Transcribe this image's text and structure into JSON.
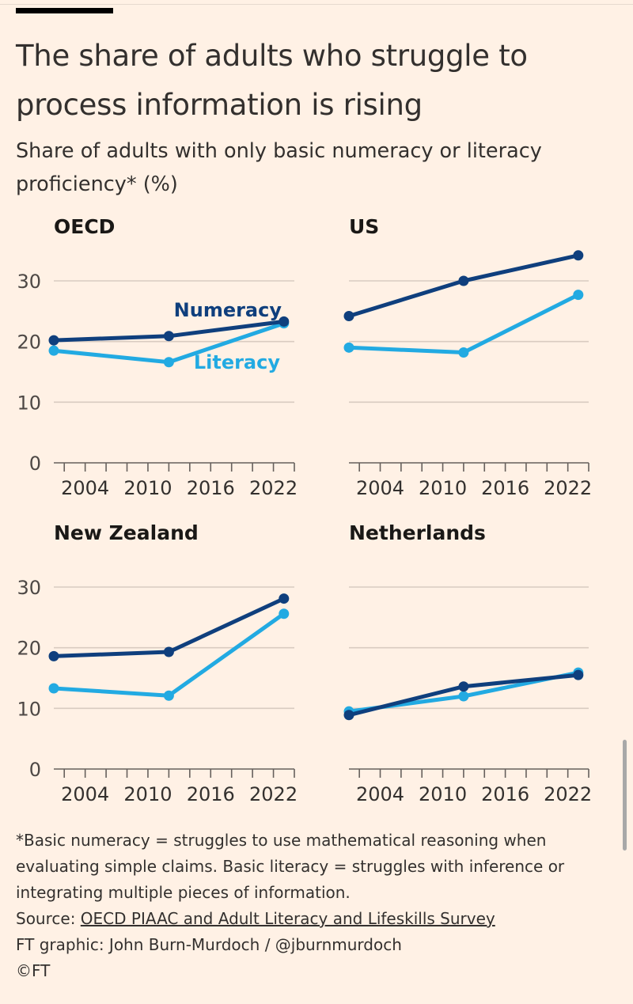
{
  "header": {
    "title": "The share of adults who struggle to process information is rising",
    "subtitle": "Share of adults with only basic numeracy or literacy proficiency* (%)"
  },
  "colors": {
    "numeracy": "#0F3F7D",
    "literacy": "#22AAE2",
    "background": "#FFF1E5",
    "grid": "#D9CCC1"
  },
  "chart_data": [
    {
      "type": "line",
      "title": "OECD",
      "x_ticks": [
        2004,
        2010,
        2016,
        2022
      ],
      "ylim": [
        0,
        30
      ],
      "y_ticks": [
        0,
        10,
        20,
        30
      ],
      "xlim": [
        2001,
        2024
      ],
      "series": [
        {
          "name": "Numeracy",
          "x": [
            2001,
            2012,
            2023
          ],
          "values": [
            20.2,
            20.9,
            23.3
          ]
        },
        {
          "name": "Literacy",
          "x": [
            2001,
            2012,
            2023
          ],
          "values": [
            18.5,
            16.6,
            23.0
          ]
        }
      ]
    },
    {
      "type": "line",
      "title": "US",
      "x_ticks": [
        2004,
        2010,
        2016,
        2022
      ],
      "ylim": [
        0,
        30
      ],
      "y_ticks": [
        0,
        10,
        20,
        30
      ],
      "xlim": [
        2001,
        2024
      ],
      "series": [
        {
          "name": "",
          "x": [
            2001,
            2012,
            2023
          ],
          "values": [
            24.2,
            30.0,
            34.2
          ]
        },
        {
          "name": "",
          "x": [
            2001,
            2012,
            2023
          ],
          "values": [
            19.0,
            18.2,
            27.7
          ]
        }
      ]
    },
    {
      "type": "line",
      "title": "New Zealand",
      "x_ticks": [
        2004,
        2010,
        2016,
        2022
      ],
      "ylim": [
        0,
        30
      ],
      "y_ticks": [
        0,
        10,
        20,
        30
      ],
      "xlim": [
        2001,
        2024
      ],
      "series": [
        {
          "name": "",
          "x": [
            2001,
            2012,
            2023
          ],
          "values": [
            18.6,
            19.3,
            28.1
          ]
        },
        {
          "name": "",
          "x": [
            2001,
            2012,
            2023
          ],
          "values": [
            13.3,
            12.1,
            25.6
          ]
        }
      ]
    },
    {
      "type": "line",
      "title": "Netherlands",
      "x_ticks": [
        2004,
        2010,
        2016,
        2022
      ],
      "ylim": [
        0,
        30
      ],
      "y_ticks": [
        0,
        10,
        20,
        30
      ],
      "xlim": [
        2001,
        2024
      ],
      "series": [
        {
          "name": "",
          "x": [
            2001,
            2012,
            2023
          ],
          "values": [
            8.9,
            13.6,
            15.5
          ]
        },
        {
          "name": "",
          "x": [
            2001,
            2012,
            2023
          ],
          "values": [
            9.5,
            12.0,
            15.9
          ]
        }
      ]
    }
  ],
  "footer": {
    "note": "*Basic numeracy = struggles to use mathematical reasoning when evaluating simple claims. Basic literacy = struggles with inference or integrating multiple pieces of information.",
    "source_prefix": "Source: ",
    "source_link": "OECD PIAAC and Adult Literacy and Lifeskills Survey",
    "credit": "FT graphic: John Burn-Murdoch / @jburnmurdoch",
    "copyright": "©FT"
  }
}
